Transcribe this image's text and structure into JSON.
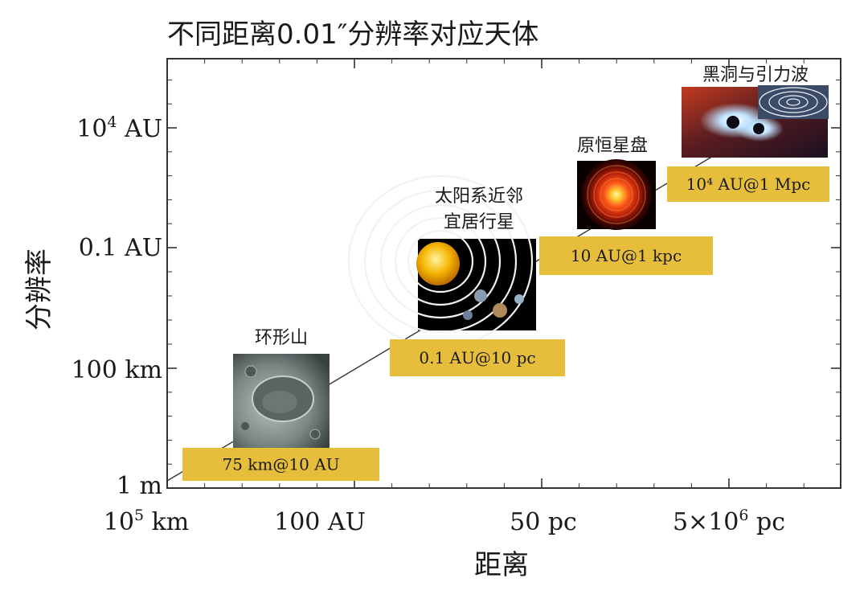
{
  "colors": {
    "label_box": "#e6be3c",
    "axis": "#333333",
    "trend_line": "#333333"
  },
  "chart_data": {
    "type": "scatter",
    "title": "不同距离0.01″分辨率对应天体",
    "xlabel": "距离",
    "ylabel": "分辨率",
    "xscale": "log",
    "yscale": "log",
    "x_ticks": [
      {
        "base": "10",
        "exp": "5",
        "unit": " km"
      },
      {
        "text": "100 AU"
      },
      {
        "text": "50 pc"
      },
      {
        "base": "5×10",
        "exp": "6",
        "unit": " pc"
      }
    ],
    "y_ticks": [
      {
        "text": "1 m"
      },
      {
        "text": "100 km"
      },
      {
        "text": "0.1 AU"
      },
      {
        "base": "10",
        "exp": "4",
        "unit": " AU"
      }
    ],
    "grid": false,
    "trend_line": true,
    "points": [
      {
        "object": "环形山",
        "object_lines": [
          "环形山"
        ],
        "resolution_label": "75 km@10 AU",
        "icon": "lunar-crater-image"
      },
      {
        "object": "太阳系近邻宜居行星",
        "object_lines": [
          "太阳系近邻",
          "宜居行星"
        ],
        "resolution_label": "0.1 AU@10 pc",
        "icon": "solar-system-image"
      },
      {
        "object": "原恒星盘",
        "object_lines": [
          "原恒星盘"
        ],
        "resolution_label": "10 AU@1 kpc",
        "icon": "protoplanetary-disk-image"
      },
      {
        "object": "黑洞与引力波",
        "object_lines": [
          "黑洞与引力波"
        ],
        "resolution_label": "10⁴ AU@1 Mpc",
        "icon": "black-hole-merger-image"
      }
    ]
  }
}
